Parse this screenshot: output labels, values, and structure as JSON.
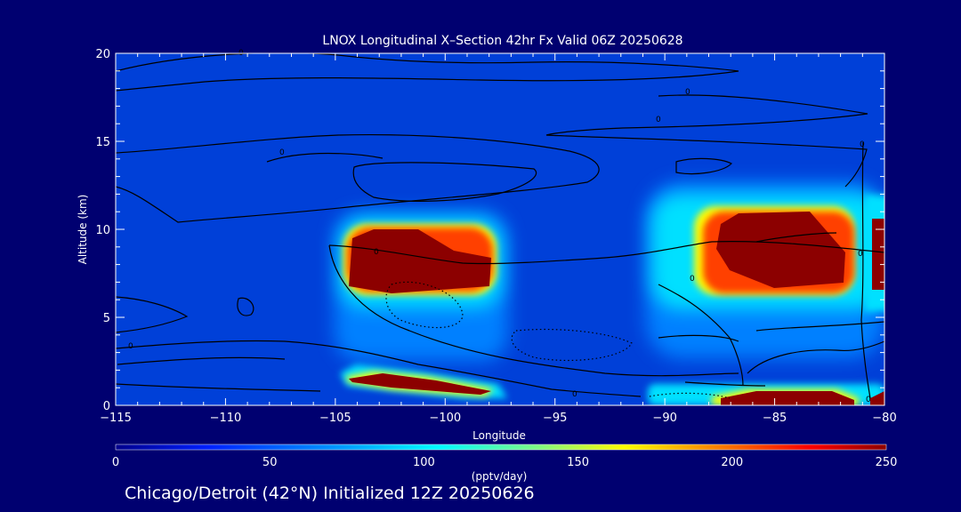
{
  "chart_data": {
    "type": "heatmap",
    "title": "LNOX Longitudinal X–Section 42hr  Fx Valid 06Z 20250628",
    "xlabel": "Longitude",
    "ylabel": "Altitude (km)",
    "xlim": [
      -115,
      -80
    ],
    "ylim": [
      0,
      20
    ],
    "x_ticks": [
      -115,
      -110,
      -105,
      -100,
      -95,
      -90,
      -85,
      -80
    ],
    "x_tick_labels": [
      "−115",
      "−110",
      "−105",
      "−100",
      "−95",
      "−90",
      "−85",
      "−80"
    ],
    "y_ticks": [
      0,
      5,
      10,
      15,
      20
    ],
    "y_tick_labels": [
      "0",
      "5",
      "10",
      "15",
      "20"
    ],
    "colorbar": {
      "label": "(pptv/day)",
      "range": [
        0,
        250
      ],
      "ticks": [
        0,
        50,
        100,
        150,
        200,
        250
      ],
      "tick_labels": [
        "0",
        "50",
        "100",
        "150",
        "200",
        "250"
      ],
      "colormap": "rainbow"
    },
    "features": [
      {
        "region": "upper",
        "lon": [
          -105,
          -97
        ],
        "alt": [
          4,
          10.5
        ],
        "peak_pptv_day": 250
      },
      {
        "region": "surface",
        "lon": [
          -104,
          -97
        ],
        "alt": [
          0.5,
          1.8
        ],
        "peak_pptv_day": 250
      },
      {
        "region": "upper",
        "lon": [
          -91,
          -80
        ],
        "alt": [
          3,
          12
        ],
        "peak_pptv_day": 250
      },
      {
        "region": "surface",
        "lon": [
          -91,
          -80
        ],
        "alt": [
          0,
          1
        ],
        "peak_pptv_day": 250
      }
    ],
    "contour_labels": [
      "0",
      "0",
      "0",
      "0",
      "0",
      "0",
      "0",
      "0",
      "0",
      "0",
      "0"
    ],
    "subtitle": "Chicago/Detroit (42°N) Initialized 12Z 20250626"
  }
}
